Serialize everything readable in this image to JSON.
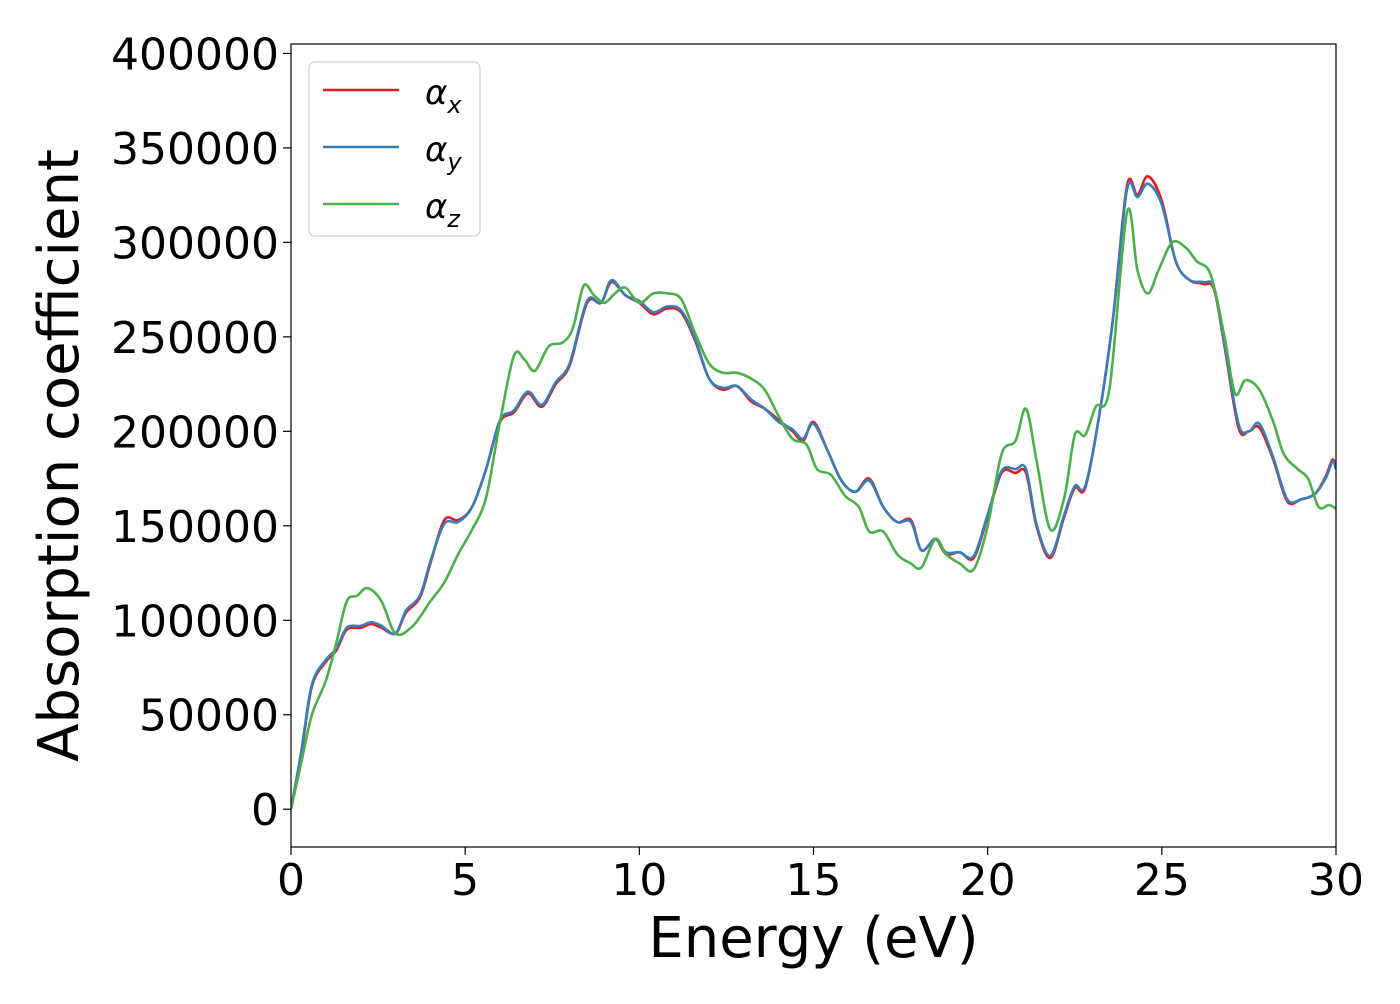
{
  "chart_data": {
    "type": "line",
    "title": "",
    "xlabel": "Energy (eV)",
    "ylabel": "Absorption coefficient",
    "xlim": [
      0,
      30
    ],
    "ylim": [
      -20000,
      405000
    ],
    "xticks": [
      0,
      5,
      10,
      15,
      20,
      25,
      30
    ],
    "yticks": [
      0,
      50000,
      100000,
      150000,
      200000,
      250000,
      300000,
      350000,
      400000
    ],
    "grid": false,
    "legend_position": "upper-left",
    "series": [
      {
        "name": "α_x",
        "label_base": "α",
        "label_sub": "x",
        "color": "#e41a1c",
        "points": [
          [
            0,
            0
          ],
          [
            0.3,
            30000
          ],
          [
            0.6,
            65000
          ],
          [
            1.0,
            78000
          ],
          [
            1.3,
            84000
          ],
          [
            1.6,
            95000
          ],
          [
            2.0,
            96000
          ],
          [
            2.3,
            98000
          ],
          [
            2.6,
            96000
          ],
          [
            3.0,
            93000
          ],
          [
            3.3,
            104000
          ],
          [
            3.7,
            112000
          ],
          [
            4.0,
            130000
          ],
          [
            4.4,
            153000
          ],
          [
            4.8,
            153000
          ],
          [
            5.2,
            160000
          ],
          [
            5.6,
            180000
          ],
          [
            6.0,
            205000
          ],
          [
            6.4,
            210000
          ],
          [
            6.8,
            220000
          ],
          [
            7.2,
            213000
          ],
          [
            7.6,
            225000
          ],
          [
            8.0,
            235000
          ],
          [
            8.5,
            268000
          ],
          [
            8.9,
            268000
          ],
          [
            9.2,
            279000
          ],
          [
            9.6,
            272000
          ],
          [
            10.0,
            268000
          ],
          [
            10.4,
            262000
          ],
          [
            10.8,
            265000
          ],
          [
            11.2,
            263000
          ],
          [
            11.6,
            248000
          ],
          [
            12.0,
            228000
          ],
          [
            12.4,
            222000
          ],
          [
            12.8,
            224000
          ],
          [
            13.2,
            216000
          ],
          [
            13.6,
            212000
          ],
          [
            14.0,
            206000
          ],
          [
            14.4,
            200000
          ],
          [
            14.7,
            195000
          ],
          [
            15.0,
            205000
          ],
          [
            15.4,
            190000
          ],
          [
            15.8,
            174000
          ],
          [
            16.2,
            168000
          ],
          [
            16.6,
            175000
          ],
          [
            17.0,
            160000
          ],
          [
            17.4,
            152000
          ],
          [
            17.8,
            153000
          ],
          [
            18.1,
            137000
          ],
          [
            18.5,
            143000
          ],
          [
            18.8,
            135000
          ],
          [
            19.2,
            136000
          ],
          [
            19.6,
            133000
          ],
          [
            20.0,
            155000
          ],
          [
            20.4,
            178000
          ],
          [
            20.8,
            178000
          ],
          [
            21.1,
            178000
          ],
          [
            21.4,
            150000
          ],
          [
            21.8,
            133000
          ],
          [
            22.2,
            155000
          ],
          [
            22.5,
            170000
          ],
          [
            22.8,
            170000
          ],
          [
            23.2,
            208000
          ],
          [
            23.6,
            260000
          ],
          [
            24.0,
            330000
          ],
          [
            24.3,
            325000
          ],
          [
            24.6,
            335000
          ],
          [
            25.0,
            322000
          ],
          [
            25.4,
            290000
          ],
          [
            25.8,
            280000
          ],
          [
            26.2,
            278000
          ],
          [
            26.5,
            275000
          ],
          [
            26.8,
            245000
          ],
          [
            27.2,
            202000
          ],
          [
            27.5,
            200000
          ],
          [
            27.8,
            202000
          ],
          [
            28.2,
            185000
          ],
          [
            28.6,
            163000
          ],
          [
            29.0,
            164000
          ],
          [
            29.4,
            167000
          ],
          [
            29.7,
            176000
          ],
          [
            29.9,
            185000
          ],
          [
            30.0,
            180000
          ]
        ]
      },
      {
        "name": "α_y",
        "label_base": "α",
        "label_sub": "y",
        "color": "#377eb8",
        "points": [
          [
            0,
            0
          ],
          [
            0.3,
            31000
          ],
          [
            0.6,
            66000
          ],
          [
            1.0,
            79000
          ],
          [
            1.3,
            85000
          ],
          [
            1.6,
            96000
          ],
          [
            2.0,
            97000
          ],
          [
            2.3,
            99000
          ],
          [
            2.6,
            97000
          ],
          [
            3.0,
            93000
          ],
          [
            3.3,
            105000
          ],
          [
            3.7,
            113000
          ],
          [
            4.0,
            131000
          ],
          [
            4.4,
            151000
          ],
          [
            4.8,
            152000
          ],
          [
            5.2,
            160000
          ],
          [
            5.6,
            180000
          ],
          [
            6.0,
            206000
          ],
          [
            6.4,
            211000
          ],
          [
            6.8,
            221000
          ],
          [
            7.2,
            214000
          ],
          [
            7.6,
            226000
          ],
          [
            8.0,
            236000
          ],
          [
            8.5,
            269000
          ],
          [
            8.9,
            268000
          ],
          [
            9.2,
            280000
          ],
          [
            9.6,
            272000
          ],
          [
            10.0,
            269000
          ],
          [
            10.4,
            263000
          ],
          [
            10.8,
            266000
          ],
          [
            11.2,
            264000
          ],
          [
            11.6,
            249000
          ],
          [
            12.0,
            228000
          ],
          [
            12.4,
            223000
          ],
          [
            12.8,
            224000
          ],
          [
            13.2,
            217000
          ],
          [
            13.6,
            212000
          ],
          [
            14.0,
            205000
          ],
          [
            14.4,
            201000
          ],
          [
            14.7,
            196000
          ],
          [
            15.0,
            204000
          ],
          [
            15.4,
            190000
          ],
          [
            15.8,
            174000
          ],
          [
            16.2,
            168000
          ],
          [
            16.6,
            174000
          ],
          [
            17.0,
            160000
          ],
          [
            17.4,
            152000
          ],
          [
            17.8,
            152000
          ],
          [
            18.1,
            137000
          ],
          [
            18.5,
            143000
          ],
          [
            18.8,
            136000
          ],
          [
            19.2,
            136000
          ],
          [
            19.6,
            134000
          ],
          [
            20.0,
            156000
          ],
          [
            20.4,
            179000
          ],
          [
            20.8,
            180000
          ],
          [
            21.1,
            180000
          ],
          [
            21.4,
            151000
          ],
          [
            21.8,
            134000
          ],
          [
            22.2,
            156000
          ],
          [
            22.5,
            171000
          ],
          [
            22.8,
            171000
          ],
          [
            23.2,
            208000
          ],
          [
            23.6,
            260000
          ],
          [
            24.0,
            328000
          ],
          [
            24.3,
            324000
          ],
          [
            24.6,
            331000
          ],
          [
            25.0,
            320000
          ],
          [
            25.4,
            290000
          ],
          [
            25.8,
            280000
          ],
          [
            26.2,
            279000
          ],
          [
            26.5,
            276000
          ],
          [
            26.8,
            246000
          ],
          [
            27.2,
            204000
          ],
          [
            27.5,
            200000
          ],
          [
            27.8,
            204000
          ],
          [
            28.2,
            186000
          ],
          [
            28.6,
            164000
          ],
          [
            29.0,
            164000
          ],
          [
            29.4,
            167000
          ],
          [
            29.7,
            175000
          ],
          [
            29.9,
            184000
          ],
          [
            30.0,
            180000
          ]
        ]
      },
      {
        "name": "α_z",
        "label_base": "α",
        "label_sub": "z",
        "color": "#4daf4a",
        "points": [
          [
            0,
            0
          ],
          [
            0.3,
            25000
          ],
          [
            0.6,
            50000
          ],
          [
            1.0,
            68000
          ],
          [
            1.3,
            88000
          ],
          [
            1.6,
            110000
          ],
          [
            1.9,
            113000
          ],
          [
            2.2,
            117000
          ],
          [
            2.6,
            110000
          ],
          [
            3.0,
            93000
          ],
          [
            3.5,
            97000
          ],
          [
            4.0,
            110000
          ],
          [
            4.4,
            120000
          ],
          [
            4.8,
            135000
          ],
          [
            5.2,
            148000
          ],
          [
            5.6,
            165000
          ],
          [
            6.0,
            205000
          ],
          [
            6.4,
            240000
          ],
          [
            6.7,
            238000
          ],
          [
            7.0,
            232000
          ],
          [
            7.4,
            245000
          ],
          [
            7.8,
            247000
          ],
          [
            8.1,
            255000
          ],
          [
            8.4,
            277000
          ],
          [
            8.7,
            272000
          ],
          [
            9.0,
            268000
          ],
          [
            9.3,
            273000
          ],
          [
            9.6,
            276000
          ],
          [
            10.0,
            268000
          ],
          [
            10.4,
            273000
          ],
          [
            10.8,
            273000
          ],
          [
            11.2,
            270000
          ],
          [
            11.6,
            252000
          ],
          [
            12.0,
            236000
          ],
          [
            12.4,
            231000
          ],
          [
            12.8,
            231000
          ],
          [
            13.2,
            228000
          ],
          [
            13.6,
            222000
          ],
          [
            14.0,
            208000
          ],
          [
            14.4,
            196000
          ],
          [
            14.8,
            193000
          ],
          [
            15.1,
            180000
          ],
          [
            15.5,
            177000
          ],
          [
            15.9,
            166000
          ],
          [
            16.3,
            160000
          ],
          [
            16.6,
            147000
          ],
          [
            17.0,
            147000
          ],
          [
            17.4,
            135000
          ],
          [
            17.8,
            130000
          ],
          [
            18.1,
            128000
          ],
          [
            18.5,
            143000
          ],
          [
            18.8,
            135000
          ],
          [
            19.2,
            130000
          ],
          [
            19.6,
            127000
          ],
          [
            20.0,
            150000
          ],
          [
            20.4,
            188000
          ],
          [
            20.8,
            195000
          ],
          [
            21.1,
            212000
          ],
          [
            21.4,
            185000
          ],
          [
            21.8,
            148000
          ],
          [
            22.2,
            165000
          ],
          [
            22.5,
            198000
          ],
          [
            22.8,
            198000
          ],
          [
            23.1,
            213000
          ],
          [
            23.5,
            223000
          ],
          [
            24.0,
            316000
          ],
          [
            24.3,
            285000
          ],
          [
            24.6,
            273000
          ],
          [
            24.9,
            285000
          ],
          [
            25.3,
            300000
          ],
          [
            25.7,
            297000
          ],
          [
            26.0,
            290000
          ],
          [
            26.4,
            283000
          ],
          [
            26.8,
            250000
          ],
          [
            27.1,
            220000
          ],
          [
            27.4,
            227000
          ],
          [
            27.8,
            222000
          ],
          [
            28.2,
            205000
          ],
          [
            28.5,
            188000
          ],
          [
            28.9,
            180000
          ],
          [
            29.2,
            175000
          ],
          [
            29.5,
            160000
          ],
          [
            29.8,
            161000
          ],
          [
            30.0,
            159000
          ]
        ]
      }
    ]
  }
}
